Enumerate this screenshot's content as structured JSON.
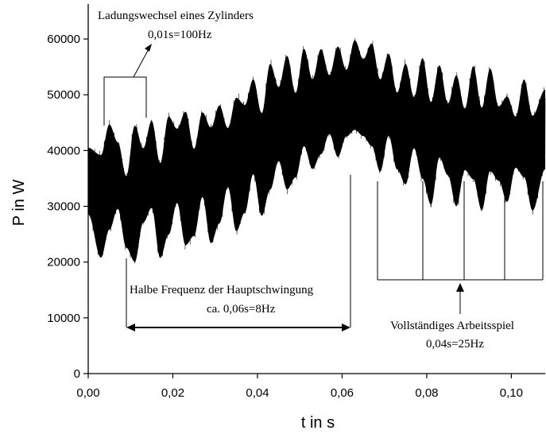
{
  "chart_data": {
    "type": "line",
    "title": "",
    "xlabel": "t in s",
    "ylabel": "P in W",
    "xlim": [
      0,
      0.108
    ],
    "ylim": [
      0,
      65000
    ],
    "x_ticks": [
      "0,00",
      "0,02",
      "0,04",
      "0,06",
      "0,08",
      "0,10"
    ],
    "x_tick_values": [
      0,
      0.02,
      0.04,
      0.06,
      0.08,
      0.1
    ],
    "y_ticks": [
      "0",
      "10000",
      "20000",
      "30000",
      "40000",
      "50000",
      "60000"
    ],
    "y_tick_values": [
      0,
      10000,
      20000,
      30000,
      40000,
      50000,
      60000
    ],
    "grid": false,
    "series": [
      {
        "color": "#000000",
        "note": "dense high-frequency power signal; envelope samples (upper/lower)",
        "x": [
          0.0,
          0.003,
          0.005,
          0.007,
          0.009,
          0.011,
          0.013,
          0.015,
          0.017,
          0.019,
          0.021,
          0.023,
          0.025,
          0.027,
          0.029,
          0.031,
          0.033,
          0.035,
          0.037,
          0.039,
          0.041,
          0.043,
          0.045,
          0.047,
          0.049,
          0.051,
          0.053,
          0.055,
          0.057,
          0.059,
          0.061,
          0.063,
          0.065,
          0.067,
          0.069,
          0.071,
          0.073,
          0.075,
          0.077,
          0.079,
          0.081,
          0.083,
          0.085,
          0.087,
          0.089,
          0.091,
          0.093,
          0.095,
          0.097,
          0.099,
          0.101,
          0.103,
          0.105,
          0.108
        ],
        "upper": [
          41000,
          40000,
          45500,
          42000,
          36000,
          45500,
          41000,
          46000,
          38500,
          47000,
          44500,
          48000,
          41000,
          47500,
          45000,
          49000,
          44500,
          50500,
          49000,
          53500,
          47500,
          56500,
          52000,
          58000,
          51000,
          59000,
          53500,
          59000,
          54000,
          59500,
          55000,
          60500,
          57000,
          60000,
          53500,
          58000,
          51000,
          56500,
          50000,
          57500,
          49500,
          56000,
          49000,
          54500,
          48000,
          56000,
          48500,
          55500,
          48500,
          50500,
          46500,
          53500,
          47000,
          51500
        ],
        "lower": [
          28000,
          20000,
          25000,
          29000,
          22000,
          19000,
          26500,
          29000,
          20000,
          24000,
          30000,
          22000,
          24000,
          31000,
          22500,
          26000,
          33000,
          24500,
          28000,
          35000,
          27500,
          32000,
          37500,
          32000,
          34500,
          40000,
          36000,
          38500,
          42500,
          38000,
          42000,
          43000,
          42000,
          40000,
          35500,
          42000,
          36000,
          33000,
          40000,
          34000,
          29500,
          38000,
          35000,
          29000,
          36000,
          34000,
          28500,
          35500,
          34000,
          30000,
          36500,
          34500,
          28500,
          36000
        ]
      }
    ],
    "annotations": [
      {
        "line1": "Ladungswechsel eines Zylinders",
        "line2": "0,01s=100Hz"
      },
      {
        "line1": "Halbe Frequenz der Hauptschwingung",
        "line2": "ca. 0,06s=8Hz"
      },
      {
        "line1": "Vollständiges Arbeitsspiel",
        "line2": "0,04s=25Hz"
      }
    ]
  }
}
